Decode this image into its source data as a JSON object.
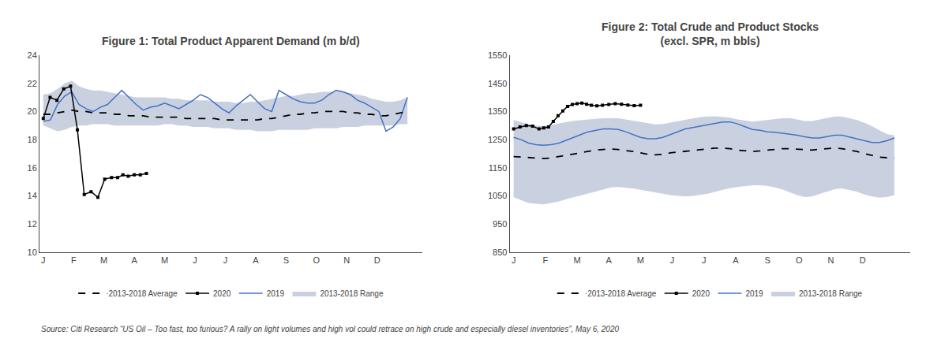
{
  "chart_data": [
    {
      "type": "line",
      "title": "Figure 1: Total Product Apparent Demand (m b/d)",
      "annotations": [
        "Source: Citi Research “US Oil – Too fast, too furious? A rally on light volumes and high vol could retrace on high crude and especially diesel inventories”, May 6, 2020"
      ],
      "x": [
        0,
        0.9411764705882353,
        1.8823529411764706,
        2.823529411764706,
        3.764705882352941,
        4.705882352941177,
        5.647058823529412,
        6.588235294117647,
        7.529411764705882,
        8.470588235294118,
        9.411764705882353,
        10.352941176470589,
        11.294117647058824,
        12.235294117647058,
        13.176470588235293,
        14.117647058823529,
        15.058823529411764,
        16,
        16.941176470588236,
        17.88235294117647,
        18.823529411764707,
        19.764705882352942,
        20.705882352941178,
        21.647058823529413,
        22.58823529411765,
        23.529411764705884,
        24.47058823529412,
        25.41176470588235,
        26.352941176470587,
        27.294117647058822,
        28.235294117647058,
        29.176470588235293,
        30.11764705882353,
        31.058823529411764,
        32,
        32.94117647058823,
        33.88235294117647,
        34.8235294117647,
        35.76470588235294,
        36.705882352941174,
        37.64705882352941,
        38.588235294117645,
        39.529411764705884,
        40.470588235294116,
        41.41176470588235,
        42.35294117647059,
        43.294117647058826,
        44.23529411764706,
        45.1764705882353,
        46.11764705882353,
        47.05882352941177,
        48
      ],
      "xlim": [
        -0.5,
        50
      ],
      "xticks": [
        {
          "value": 0,
          "label": "J"
        },
        {
          "value": 4,
          "label": "F"
        },
        {
          "value": 8,
          "label": "M"
        },
        {
          "value": 12,
          "label": "A"
        },
        {
          "value": 16,
          "label": "M"
        },
        {
          "value": 20,
          "label": "J"
        },
        {
          "value": 24,
          "label": "J"
        },
        {
          "value": 28,
          "label": "A"
        },
        {
          "value": 32,
          "label": "S"
        },
        {
          "value": 36,
          "label": "O"
        },
        {
          "value": 40,
          "label": "N"
        },
        {
          "value": 44,
          "label": "D"
        }
      ],
      "ylim": [
        10,
        24
      ],
      "yticks": [
        10,
        12,
        14,
        16,
        18,
        20,
        22,
        24
      ],
      "grid": false,
      "legend": "bottom",
      "series": [
        {
          "name": "2013-2018 Range",
          "type": "range",
          "color": "#8899bb",
          "low": [
            19.0,
            18.8,
            18.6,
            18.7,
            18.9,
            19.0,
            19.0,
            19.1,
            19.1,
            19.1,
            19.0,
            19.0,
            19.0,
            19.0,
            19.0,
            19.0,
            19.0,
            19.1,
            19.1,
            19.0,
            19.0,
            18.9,
            18.9,
            18.9,
            18.8,
            18.8,
            18.8,
            18.7,
            18.7,
            18.7,
            18.6,
            18.6,
            18.6,
            18.7,
            18.7,
            18.7,
            18.7,
            18.7,
            18.8,
            18.8,
            18.8,
            18.8,
            18.9,
            18.9,
            18.9,
            19.0,
            19.0,
            19.0,
            19.0,
            19.0,
            19.1,
            19.1
          ],
          "high": [
            21.2,
            21.3,
            21.6,
            22.0,
            22.2,
            21.8,
            21.6,
            21.5,
            21.5,
            21.4,
            21.3,
            21.2,
            21.1,
            21.0,
            21.0,
            21.0,
            21.0,
            21.0,
            20.9,
            20.9,
            20.8,
            20.8,
            20.8,
            20.8,
            20.7,
            20.7,
            20.7,
            20.6,
            20.6,
            20.7,
            20.7,
            20.8,
            20.9,
            21.0,
            21.1,
            21.1,
            21.2,
            21.3,
            21.3,
            21.4,
            21.4,
            21.4,
            21.4,
            21.3,
            21.2,
            21.1,
            20.9,
            20.8,
            20.7,
            20.7,
            20.8,
            21.0
          ]
        },
        {
          "name": "2019",
          "color": "#4472C4",
          "values": [
            19.3,
            19.4,
            20.5,
            21.1,
            21.4,
            20.5,
            20.2,
            20.0,
            20.3,
            20.5,
            21.0,
            21.5,
            21.0,
            20.5,
            20.1,
            20.3,
            20.4,
            20.6,
            20.4,
            20.2,
            20.5,
            20.8,
            21.2,
            21.0,
            20.6,
            20.2,
            19.9,
            20.4,
            20.8,
            21.2,
            20.7,
            20.2,
            20.0,
            21.5,
            21.2,
            20.9,
            20.7,
            20.6,
            20.6,
            20.8,
            21.2,
            21.5,
            21.4,
            21.2,
            20.8,
            20.6,
            20.3,
            20.0,
            18.6,
            18.9,
            19.5,
            21.0
          ]
        },
        {
          "name": "2020",
          "color": "#000000",
          "marker": "square",
          "x": [
            0,
            0.9,
            1.8,
            2.7,
            3.6,
            4.5,
            5.4,
            6.3,
            7.2,
            8.1,
            9.0,
            9.8,
            10.5,
            11.2,
            12.0,
            12.8,
            13.6
          ],
          "values": [
            19.5,
            21.0,
            20.8,
            21.6,
            21.8,
            18.7,
            14.1,
            14.3,
            13.9,
            15.2,
            15.3,
            15.3,
            15.5,
            15.4,
            15.5,
            15.5,
            15.6
          ]
        },
        {
          "name": "·2013-2018 Average",
          "color": "#000000",
          "line_style": "dashed",
          "values": [
            19.8,
            19.8,
            19.9,
            20.0,
            20.1,
            20.0,
            20.0,
            19.9,
            19.9,
            19.9,
            19.8,
            19.8,
            19.7,
            19.7,
            19.7,
            19.6,
            19.6,
            19.6,
            19.6,
            19.6,
            19.5,
            19.5,
            19.5,
            19.5,
            19.5,
            19.4,
            19.4,
            19.4,
            19.4,
            19.4,
            19.4,
            19.5,
            19.5,
            19.6,
            19.7,
            19.8,
            19.8,
            19.9,
            19.9,
            20.0,
            20.0,
            20.0,
            20.0,
            19.9,
            19.9,
            19.8,
            19.8,
            19.7,
            19.7,
            19.8,
            19.9,
            20.0
          ]
        }
      ]
    },
    {
      "type": "line",
      "title": "Figure 2: Total Crude and Product Stocks\n(excl. SPR, m bbls)",
      "x": [
        0,
        0.9411764705882353,
        1.8823529411764706,
        2.823529411764706,
        3.764705882352941,
        4.705882352941177,
        5.647058823529412,
        6.588235294117647,
        7.529411764705882,
        8.470588235294118,
        9.411764705882353,
        10.352941176470589,
        11.294117647058824,
        12.235294117647058,
        13.176470588235293,
        14.117647058823529,
        15.058823529411764,
        16,
        16.941176470588236,
        17.88235294117647,
        18.823529411764707,
        19.764705882352942,
        20.705882352941178,
        21.647058823529413,
        22.58823529411765,
        23.529411764705884,
        24.47058823529412,
        25.41176470588235,
        26.352941176470587,
        27.294117647058822,
        28.235294117647058,
        29.176470588235293,
        30.11764705882353,
        31.058823529411764,
        32,
        32.94117647058823,
        33.88235294117647,
        34.8235294117647,
        35.76470588235294,
        36.705882352941174,
        37.64705882352941,
        38.588235294117645,
        39.529411764705884,
        40.470588235294116,
        41.41176470588235,
        42.35294117647059,
        43.294117647058826,
        44.23529411764706,
        45.1764705882353,
        46.11764705882353,
        47.05882352941177,
        48
      ],
      "xlim": [
        -0.5,
        50
      ],
      "xticks": [
        {
          "value": 0,
          "label": "J"
        },
        {
          "value": 4,
          "label": "F"
        },
        {
          "value": 8,
          "label": "M"
        },
        {
          "value": 12,
          "label": "A"
        },
        {
          "value": 16,
          "label": "M"
        },
        {
          "value": 20,
          "label": "J"
        },
        {
          "value": 24,
          "label": "J"
        },
        {
          "value": 28,
          "label": "A"
        },
        {
          "value": 32,
          "label": "S"
        },
        {
          "value": 36,
          "label": "O"
        },
        {
          "value": 40,
          "label": "N"
        },
        {
          "value": 44,
          "label": "D"
        }
      ],
      "ylim": [
        850,
        1550
      ],
      "yticks": [
        850,
        950,
        1050,
        1150,
        1250,
        1350,
        1450,
        1550
      ],
      "grid": false,
      "legend": "bottom",
      "series": [
        {
          "name": "2013-2018 Range",
          "type": "range",
          "color": "#8899bb",
          "low": [
            1045,
            1035,
            1025,
            1022,
            1020,
            1025,
            1030,
            1038,
            1045,
            1052,
            1060,
            1068,
            1075,
            1080,
            1082,
            1080,
            1077,
            1072,
            1068,
            1063,
            1058,
            1053,
            1050,
            1048,
            1050,
            1053,
            1058,
            1065,
            1072,
            1078,
            1082,
            1085,
            1088,
            1088,
            1086,
            1080,
            1073,
            1063,
            1053,
            1046,
            1048,
            1057,
            1066,
            1074,
            1077,
            1072,
            1065,
            1055,
            1048,
            1044,
            1046,
            1053
          ],
          "high": [
            1320,
            1312,
            1305,
            1300,
            1298,
            1302,
            1308,
            1312,
            1317,
            1320,
            1322,
            1324,
            1326,
            1326,
            1326,
            1322,
            1318,
            1313,
            1308,
            1304,
            1306,
            1311,
            1316,
            1321,
            1326,
            1330,
            1332,
            1333,
            1331,
            1328,
            1322,
            1317,
            1314,
            1317,
            1320,
            1324,
            1326,
            1327,
            1322,
            1316,
            1316,
            1322,
            1327,
            1332,
            1332,
            1327,
            1320,
            1310,
            1298,
            1283,
            1270,
            1265
          ]
        },
        {
          "name": "2019",
          "color": "#4472C4",
          "values": [
            1258,
            1250,
            1238,
            1232,
            1230,
            1232,
            1237,
            1248,
            1257,
            1268,
            1278,
            1283,
            1288,
            1288,
            1286,
            1278,
            1268,
            1258,
            1253,
            1253,
            1258,
            1268,
            1278,
            1288,
            1293,
            1298,
            1303,
            1308,
            1313,
            1313,
            1306,
            1296,
            1286,
            1283,
            1278,
            1276,
            1273,
            1270,
            1266,
            1260,
            1256,
            1256,
            1260,
            1266,
            1266,
            1260,
            1253,
            1246,
            1240,
            1240,
            1246,
            1256
          ]
        },
        {
          "name": "2020",
          "color": "#000000",
          "marker": "square",
          "x": [
            0,
            0.8,
            1.6,
            2.4,
            3.2,
            3.8,
            4.4,
            5.0,
            5.6,
            6.2,
            6.8,
            7.4,
            8.0,
            8.6,
            9.2,
            9.8,
            10.5,
            11.2,
            12.0,
            12.8,
            13.6,
            14.4,
            15.2,
            16.0
          ],
          "values": [
            1288,
            1295,
            1300,
            1298,
            1288,
            1292,
            1295,
            1315,
            1335,
            1352,
            1368,
            1375,
            1378,
            1380,
            1376,
            1372,
            1370,
            1372,
            1375,
            1378,
            1376,
            1373,
            1371,
            1372
          ]
        },
        {
          "name": "·2013-2018 Average",
          "color": "#000000",
          "line_style": "dashed",
          "values": [
            1190,
            1188,
            1185,
            1183,
            1183,
            1185,
            1190,
            1195,
            1200,
            1205,
            1210,
            1213,
            1215,
            1217,
            1215,
            1212,
            1208,
            1203,
            1198,
            1196,
            1198,
            1203,
            1206,
            1208,
            1212,
            1215,
            1218,
            1220,
            1220,
            1218,
            1213,
            1210,
            1208,
            1210,
            1213,
            1216,
            1218,
            1218,
            1216,
            1213,
            1213,
            1216,
            1218,
            1220,
            1218,
            1213,
            1208,
            1200,
            1193,
            1188,
            1186,
            1186
          ]
        }
      ]
    }
  ]
}
